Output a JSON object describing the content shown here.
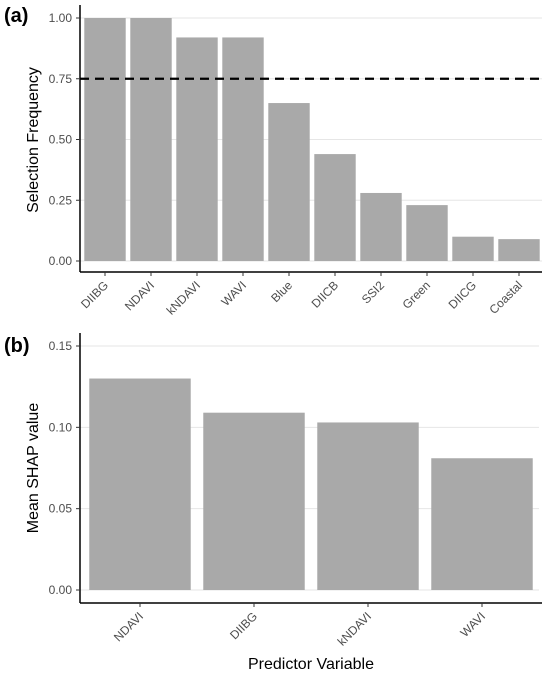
{
  "chart_data": [
    {
      "type": "bar",
      "panel_label": "(a)",
      "title": "",
      "xlabel": "",
      "ylabel": "Selection Frequency",
      "categories": [
        "DIIBG",
        "NDAVI",
        "kNDAVI",
        "WAVI",
        "Blue",
        "DIICB",
        "SSI2",
        "Green",
        "DIICG",
        "Coastal"
      ],
      "values": [
        1.0,
        1.0,
        0.92,
        0.92,
        0.65,
        0.44,
        0.28,
        0.23,
        0.1,
        0.09
      ],
      "ylim": [
        0,
        1.0
      ],
      "yticks": [
        "0.00",
        "0.25",
        "0.50",
        "0.75",
        "1.00"
      ],
      "ytick_values": [
        0,
        0.25,
        0.5,
        0.75,
        1.0
      ],
      "threshold": 0.75,
      "grid": true,
      "bar_color": "#a9a9a9"
    },
    {
      "type": "bar",
      "panel_label": "(b)",
      "title": "",
      "xlabel": "Predictor Variable",
      "ylabel": "Mean SHAP value",
      "categories": [
        "NDAVI",
        "DIIBG",
        "kNDAVI",
        "WAVI"
      ],
      "values": [
        0.13,
        0.109,
        0.103,
        0.081
      ],
      "ylim": [
        0,
        0.15
      ],
      "yticks": [
        "0.00",
        "0.05",
        "0.10",
        "0.15"
      ],
      "ytick_values": [
        0,
        0.05,
        0.1,
        0.15
      ],
      "grid": true,
      "bar_color": "#a9a9a9"
    }
  ]
}
